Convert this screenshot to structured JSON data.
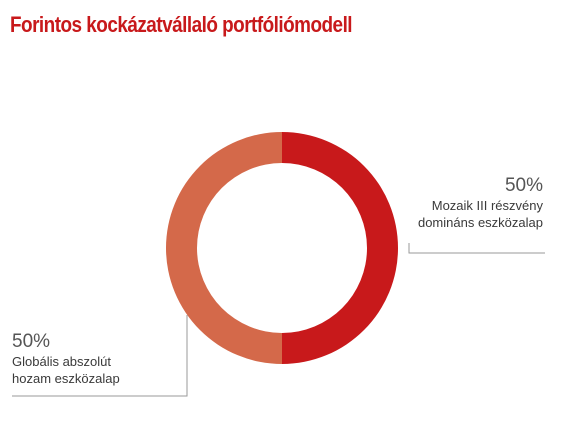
{
  "title": "Forintos kockázatvállaló portfóliómodell",
  "chart_data": {
    "type": "pie",
    "variant": "donut",
    "slices": [
      {
        "percent_label": "50%",
        "value": 50,
        "label_lines": [
          "Mozaik III részvény",
          "domináns eszközalap"
        ],
        "color": "#c8191b"
      },
      {
        "percent_label": "50%",
        "value": 50,
        "label_lines": [
          "Globális abszolút",
          "hozam eszközalap"
        ],
        "color": "#d4694a"
      }
    ]
  }
}
